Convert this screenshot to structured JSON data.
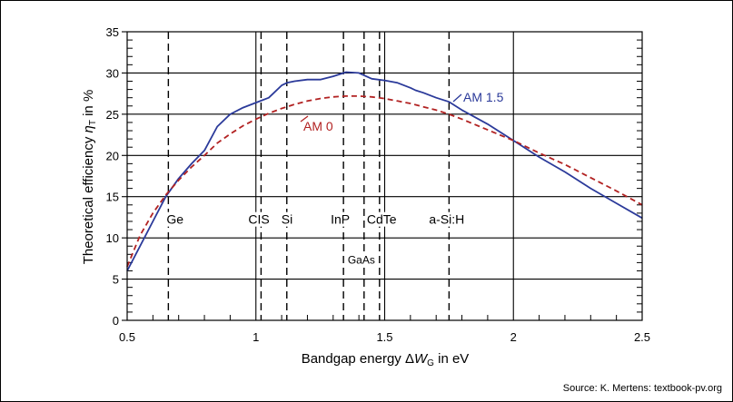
{
  "chart_data": {
    "type": "line",
    "xlabel": "Bandgap energy ΔW_G in eV",
    "ylabel": "Theoretical efficiency η_T in %",
    "xlim": [
      0.5,
      2.5
    ],
    "ylim": [
      0,
      35
    ],
    "x_ticks": [
      "0.5",
      "1",
      "1.5",
      "2",
      "2.5"
    ],
    "y_ticks": [
      "0",
      "5",
      "10",
      "15",
      "20",
      "25",
      "30",
      "35"
    ],
    "grid": "horizontal major lines with minor tick marks",
    "series": [
      {
        "name": "AM 1.5",
        "color": "#2b3a9a",
        "style": "solid",
        "x": [
          0.5,
          0.55,
          0.6,
          0.65,
          0.7,
          0.75,
          0.8,
          0.85,
          0.9,
          0.95,
          1.0,
          1.05,
          1.1,
          1.12,
          1.15,
          1.2,
          1.25,
          1.3,
          1.35,
          1.4,
          1.45,
          1.5,
          1.55,
          1.6,
          1.62,
          1.65,
          1.7,
          1.75,
          1.8,
          1.9,
          2.0,
          2.1,
          2.2,
          2.3,
          2.4,
          2.5
        ],
        "y": [
          6.0,
          9.0,
          12.0,
          15.0,
          17.2,
          19.0,
          20.6,
          23.5,
          25.0,
          25.8,
          26.4,
          27.0,
          28.5,
          28.8,
          29.0,
          29.2,
          29.2,
          29.6,
          30.1,
          30.0,
          29.3,
          29.1,
          28.8,
          28.2,
          27.9,
          27.6,
          27.0,
          26.5,
          25.5,
          23.8,
          21.8,
          19.8,
          18.0,
          16.0,
          14.2,
          12.4
        ]
      },
      {
        "name": "AM 0",
        "color": "#b22222",
        "style": "dashed",
        "x": [
          0.5,
          0.55,
          0.6,
          0.65,
          0.7,
          0.75,
          0.8,
          0.85,
          0.9,
          0.95,
          1.0,
          1.05,
          1.1,
          1.15,
          1.2,
          1.25,
          1.3,
          1.35,
          1.4,
          1.45,
          1.5,
          1.55,
          1.6,
          1.65,
          1.7,
          1.75,
          1.8,
          1.9,
          2.0,
          2.1,
          2.2,
          2.3,
          2.4,
          2.5
        ],
        "y": [
          6.5,
          10.3,
          13.0,
          15.2,
          17.0,
          18.6,
          20.0,
          21.5,
          22.6,
          23.6,
          24.4,
          25.1,
          25.7,
          26.2,
          26.6,
          26.9,
          27.1,
          27.2,
          27.2,
          27.1,
          26.9,
          26.6,
          26.3,
          25.9,
          25.5,
          25.0,
          24.4,
          23.1,
          21.8,
          20.3,
          18.9,
          17.3,
          15.7,
          14.0
        ]
      }
    ],
    "series_labels": {
      "am15": "AM 1.5",
      "am0": "AM 0"
    },
    "materials": [
      {
        "label": "Ge",
        "x": 0.66
      },
      {
        "label": "CIS",
        "x": 1.02
      },
      {
        "label": "Si",
        "x": 1.12
      },
      {
        "label": "InP",
        "x": 1.34
      },
      {
        "label": "GaAs",
        "x": 1.42
      },
      {
        "label": "CdTe",
        "x": 1.48
      },
      {
        "label": "a-Si:H",
        "x": 1.75
      }
    ],
    "source": "Source: K. Mertens: textbook-pv.org"
  }
}
